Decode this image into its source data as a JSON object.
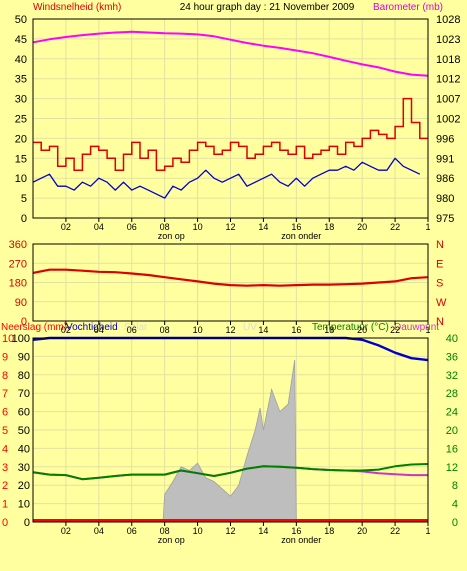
{
  "header": {
    "wind_label": "Windsnelheid (kmh)",
    "title": "24 hour graph day : 21 November 2009",
    "baro_label": "Barometer (mb)"
  },
  "colors": {
    "background": "#ffff9f",
    "wind_gust": "#dd0000",
    "wind_avg": "#0000cc",
    "barometer": "#ff00ff",
    "wind_direction": "#dd0000",
    "humidity": "#0000cc",
    "solar": "#bebebe",
    "temperature": "#008000",
    "dewpoint": "#cc33cc",
    "rain": "#ff0000"
  },
  "x_ticks": [
    "02",
    "04",
    "06",
    "08",
    "10",
    "12",
    "14",
    "16",
    "18",
    "20",
    "22",
    "1"
  ],
  "sun_markers": {
    "sunrise": "zon op",
    "sunset": "zon onder"
  },
  "chart_data": [
    {
      "type": "line",
      "title": "24 hour graph day : 21 November 2009",
      "x_ticks": [
        "02",
        "04",
        "06",
        "08",
        "10",
        "12",
        "14",
        "16",
        "18",
        "20",
        "22",
        "1"
      ],
      "xlim_hours": [
        0,
        24
      ],
      "y_left": {
        "label": "Windsnelheid (kmh)",
        "ticks": [
          "0",
          "5",
          "10",
          "15",
          "20",
          "25",
          "30",
          "35",
          "40",
          "45",
          "50"
        ],
        "ylim": [
          0,
          50
        ]
      },
      "y_right": {
        "label": "Barometer (mb)",
        "ticks": [
          "975",
          "980",
          "986",
          "991",
          "996",
          "1002",
          "1007",
          "1012",
          "1018",
          "1023",
          "1028"
        ],
        "ylim": [
          975,
          1028
        ]
      },
      "series": [
        {
          "key": "gust",
          "axis": "left",
          "x": [
            0.0,
            0.5,
            1.0,
            1.5,
            2.0,
            2.5,
            3.0,
            3.5,
            4.0,
            4.5,
            5.0,
            5.5,
            6.0,
            6.5,
            7.0,
            7.5,
            8.0,
            8.5,
            9.0,
            9.5,
            10.0,
            10.5,
            11.0,
            11.5,
            12.0,
            12.5,
            13.0,
            13.5,
            14.0,
            14.5,
            15.0,
            15.5,
            16.0,
            16.5,
            17.0,
            17.5,
            18.0,
            18.5,
            19.0,
            19.5,
            20.0,
            20.5,
            21.0,
            21.5,
            22.0,
            22.5,
            23.0,
            23.5
          ],
          "y": [
            19,
            17,
            18,
            13,
            15,
            12,
            16,
            18,
            17,
            15,
            12,
            16,
            19,
            15,
            17,
            12,
            13,
            15,
            14,
            17,
            19,
            18,
            16,
            17,
            19,
            18,
            15,
            16,
            18,
            19,
            17,
            16,
            18,
            15,
            16,
            17,
            18,
            16,
            19,
            18,
            20,
            22,
            21,
            20,
            23,
            30,
            24,
            20
          ]
        },
        {
          "key": "average",
          "axis": "left",
          "x": [
            0.0,
            0.5,
            1.0,
            1.5,
            2.0,
            2.5,
            3.0,
            3.5,
            4.0,
            4.5,
            5.0,
            5.5,
            6.0,
            6.5,
            7.0,
            7.5,
            8.0,
            8.5,
            9.0,
            9.5,
            10.0,
            10.5,
            11.0,
            11.5,
            12.0,
            12.5,
            13.0,
            13.5,
            14.0,
            14.5,
            15.0,
            15.5,
            16.0,
            16.5,
            17.0,
            17.5,
            18.0,
            18.5,
            19.0,
            19.5,
            20.0,
            20.5,
            21.0,
            21.5,
            22.0,
            22.5,
            23.0,
            23.5
          ],
          "y": [
            9,
            10,
            11,
            8,
            8,
            7,
            9,
            8,
            10,
            9,
            7,
            9,
            7,
            8,
            7,
            6,
            5,
            8,
            7,
            9,
            10,
            12,
            10,
            9,
            10,
            11,
            8,
            9,
            10,
            11,
            9,
            8,
            10,
            8,
            10,
            11,
            12,
            12,
            13,
            12,
            14,
            13,
            12,
            12,
            15,
            13,
            12,
            11
          ]
        },
        {
          "key": "barometer",
          "axis": "right",
          "x": [
            0,
            1,
            2,
            3,
            4,
            5,
            6,
            7,
            8,
            9,
            10,
            11,
            12,
            13,
            14,
            15,
            16,
            17,
            18,
            19,
            20,
            21,
            22,
            23,
            24
          ],
          "y": [
            1021.8,
            1022.6,
            1023.2,
            1023.7,
            1024.1,
            1024.4,
            1024.6,
            1024.4,
            1024.2,
            1024.1,
            1023.9,
            1023.4,
            1022.5,
            1021.6,
            1020.9,
            1020.3,
            1019.6,
            1018.9,
            1017.9,
            1016.9,
            1015.9,
            1015.1,
            1014.0,
            1013.2,
            1012.9
          ]
        }
      ],
      "annotations": [
        "zon op",
        "zon onder"
      ]
    },
    {
      "type": "line",
      "title": "",
      "x_ticks": [
        "02",
        "04",
        "06",
        "08",
        "10",
        "12",
        "14",
        "16",
        "18",
        "20",
        "22",
        "1"
      ],
      "y_left": {
        "label": "",
        "ticks": [
          "0",
          "90",
          "180",
          "270",
          "360"
        ],
        "ylim": [
          0,
          360
        ]
      },
      "y_right": {
        "label": "",
        "ticks": [
          "N",
          "W",
          "S",
          "E",
          "N"
        ]
      },
      "series": [
        {
          "key": "direction",
          "axis": "left",
          "x": [
            0,
            1,
            2,
            3,
            4,
            5,
            6,
            7,
            8,
            9,
            10,
            11,
            12,
            13,
            14,
            15,
            16,
            17,
            18,
            19,
            20,
            21,
            22,
            23,
            24
          ],
          "y": [
            225,
            240,
            240,
            235,
            230,
            228,
            222,
            215,
            205,
            195,
            185,
            175,
            168,
            165,
            168,
            165,
            168,
            170,
            170,
            172,
            175,
            180,
            185,
            200,
            205
          ]
        }
      ]
    },
    {
      "type": "line",
      "title": "",
      "header": {
        "left_labels": [
          "Neerslag (mm)",
          "Vochtigheid",
          "Solar"
        ],
        "center_label": "UV",
        "right_label_a": "Temperatuur (°C)",
        "right_label_b": "Dauwpunt"
      },
      "x_ticks": [
        "02",
        "04",
        "06",
        "08",
        "10",
        "12",
        "14",
        "16",
        "18",
        "20",
        "22",
        "1"
      ],
      "y_rain": {
        "ticks": [
          "0",
          "1",
          "2",
          "3",
          "4",
          "5",
          "6",
          "7",
          "8",
          "9",
          "10"
        ],
        "ylim": [
          0,
          10
        ]
      },
      "y_humidity": {
        "ticks": [
          "0",
          "10",
          "20",
          "30",
          "40",
          "50",
          "60",
          "70",
          "80",
          "90",
          "100"
        ],
        "ylim": [
          0,
          100
        ]
      },
      "y_right": {
        "ticks": [
          "0",
          "4",
          "8",
          "12",
          "16",
          "20",
          "24",
          "28",
          "32",
          "36",
          "40"
        ],
        "ylim": [
          0,
          40
        ]
      },
      "series": [
        {
          "key": "humidity",
          "axis": "humidity",
          "x": [
            0,
            1,
            2,
            3,
            4,
            5,
            6,
            7,
            8,
            9,
            10,
            11,
            12,
            13,
            14,
            15,
            16,
            17,
            18,
            19,
            20,
            21,
            22,
            23,
            24
          ],
          "y": [
            99,
            100,
            100,
            100,
            100,
            100,
            100,
            100,
            100,
            100,
            100,
            100,
            100,
            100,
            100,
            100,
            100,
            100,
            100,
            100,
            99,
            96,
            92,
            89,
            88
          ]
        },
        {
          "key": "solar",
          "axis": "humidity",
          "x": [
            7.9,
            8.0,
            8.5,
            9.0,
            9.5,
            10.0,
            10.5,
            11.0,
            11.5,
            12.0,
            12.5,
            13.0,
            13.5,
            13.8,
            14.0,
            14.5,
            15.0,
            15.5,
            15.9,
            16.0
          ],
          "y": [
            0,
            15,
            22,
            30,
            28,
            32,
            24,
            22,
            18,
            14,
            20,
            36,
            50,
            62,
            50,
            72,
            60,
            64,
            88,
            0
          ]
        },
        {
          "key": "temperature",
          "axis": "right",
          "x": [
            0,
            1,
            2,
            3,
            4,
            5,
            6,
            7,
            8,
            9,
            10,
            11,
            12,
            13,
            14,
            15,
            16,
            17,
            18,
            19,
            20,
            21,
            22,
            23,
            24
          ],
          "y": [
            10.8,
            10.3,
            10.2,
            9.3,
            9.6,
            10.0,
            10.3,
            10.3,
            10.3,
            11.2,
            10.6,
            10.0,
            10.7,
            11.6,
            12.1,
            12.0,
            11.8,
            11.5,
            11.3,
            11.2,
            11.2,
            11.4,
            12.1,
            12.5,
            12.6
          ]
        },
        {
          "key": "dewpoint",
          "axis": "right",
          "x": [
            0,
            1,
            2,
            3,
            4,
            5,
            6,
            7,
            8,
            9,
            10,
            11,
            12,
            13,
            14,
            15,
            16,
            17,
            18,
            19,
            20,
            21,
            22,
            23,
            24
          ],
          "y": [
            10.8,
            10.3,
            10.2,
            9.3,
            9.6,
            10.0,
            10.3,
            10.3,
            10.3,
            11.2,
            10.6,
            10.0,
            10.7,
            11.6,
            12.1,
            12.0,
            11.8,
            11.5,
            11.3,
            11.2,
            11.0,
            10.6,
            10.4,
            10.2,
            10.2
          ]
        },
        {
          "key": "rain",
          "axis": "rain",
          "x": [
            0,
            24
          ],
          "y": [
            0.1,
            0.1
          ]
        }
      ]
    }
  ]
}
